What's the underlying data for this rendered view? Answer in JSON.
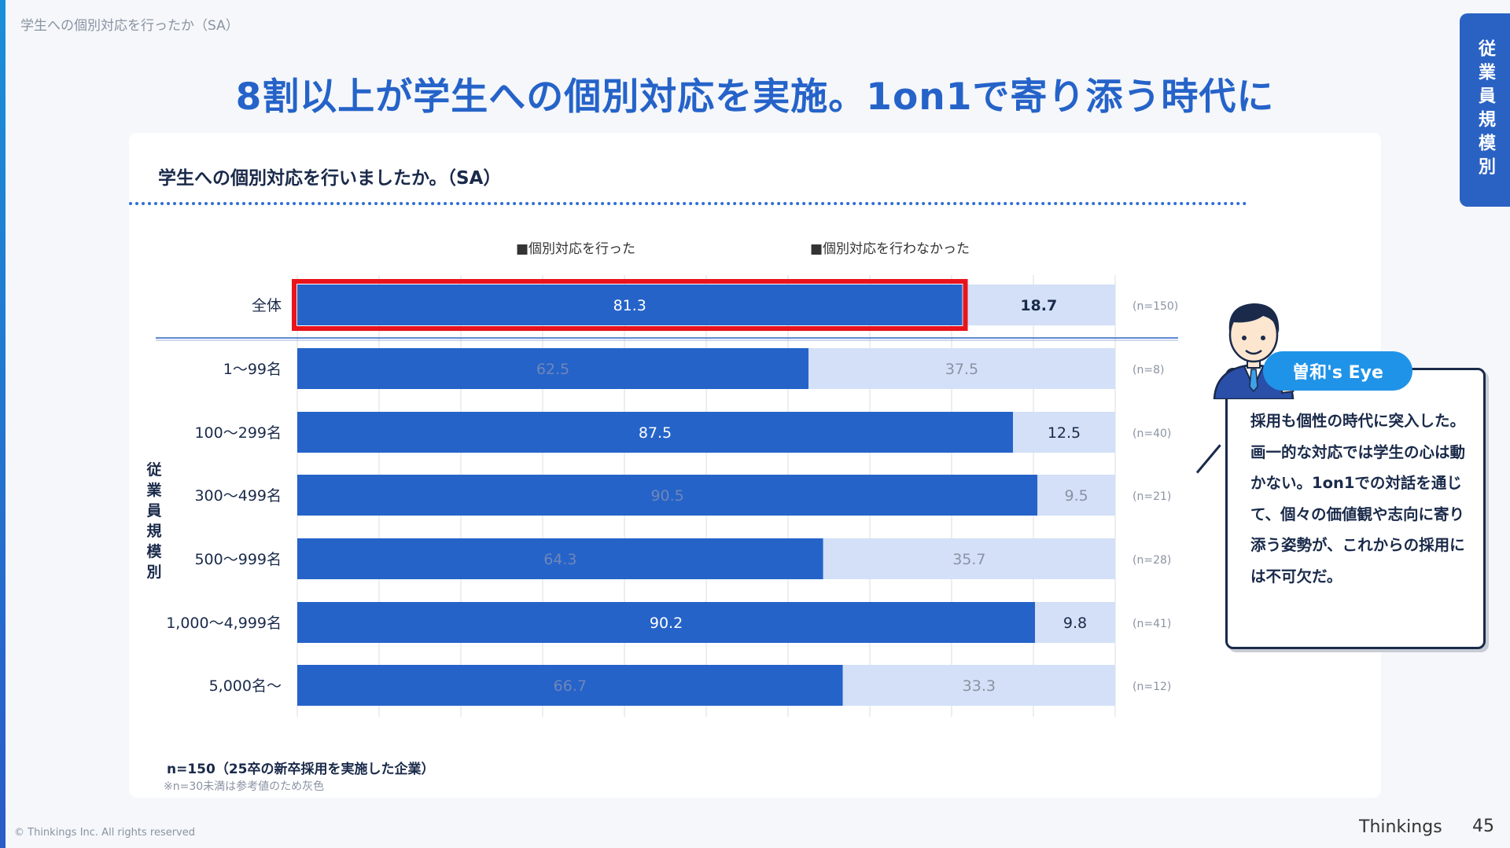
{
  "header": {
    "breadcrumb": "学生への個別対応を行ったか（SA）",
    "title": "8割以上が学生への個別対応を実施。1on1で寄り添う時代に",
    "side_tab": "従業員規模別"
  },
  "question": "学生への個別対応を行いましたか。（SA）",
  "legend": [
    {
      "label": "■個別対応を行った",
      "color": "#2563c9"
    },
    {
      "label": "■個別対応を行わなかった",
      "color": "#d3e0f7"
    }
  ],
  "vertical_group_label": "従業員規模別",
  "chart_data": {
    "type": "bar",
    "orientation": "horizontal",
    "stacked": true,
    "percent_scale": true,
    "xlim": [
      0,
      100
    ],
    "categories": [
      "全体",
      "1〜99名",
      "100〜299名",
      "300〜499名",
      "500〜999名",
      "1,000〜4,999名",
      "5,000名〜"
    ],
    "series": [
      {
        "name": "個別対応を行った",
        "color": "#2563c9",
        "values": [
          81.3,
          62.5,
          87.5,
          90.5,
          64.3,
          90.2,
          66.7
        ]
      },
      {
        "name": "個別対応を行わなかった",
        "color": "#d3e0f7",
        "values": [
          18.7,
          37.5,
          12.5,
          9.5,
          35.7,
          9.8,
          33.3
        ]
      }
    ],
    "sample_sizes": [
      "(n=150)",
      "(n=8)",
      "(n=40)",
      "(n=21)",
      "(n=28)",
      "(n=41)",
      "(n=12)"
    ],
    "low_sample_gray": [
      false,
      true,
      false,
      true,
      true,
      false,
      true
    ],
    "highlight_row": 0,
    "highlight_color": "#e8141c",
    "grid": true
  },
  "notes": {
    "base": "n=150（25卒の新卒採用を実施した企業）",
    "caveat": "※n=30未満は参考値のため灰色"
  },
  "comment": {
    "badge": "曽和's Eye",
    "text": "採用も個性の時代に突入した。画一的な対応では学生の心は動かない。1on1での対話を通じて、個々の価値観や志向に寄り添う姿勢が、これからの採用には不可欠だ。"
  },
  "footer": {
    "copyright": "© Thinkings Inc. All rights reserved",
    "brand": "Thinkings",
    "page": "45"
  }
}
